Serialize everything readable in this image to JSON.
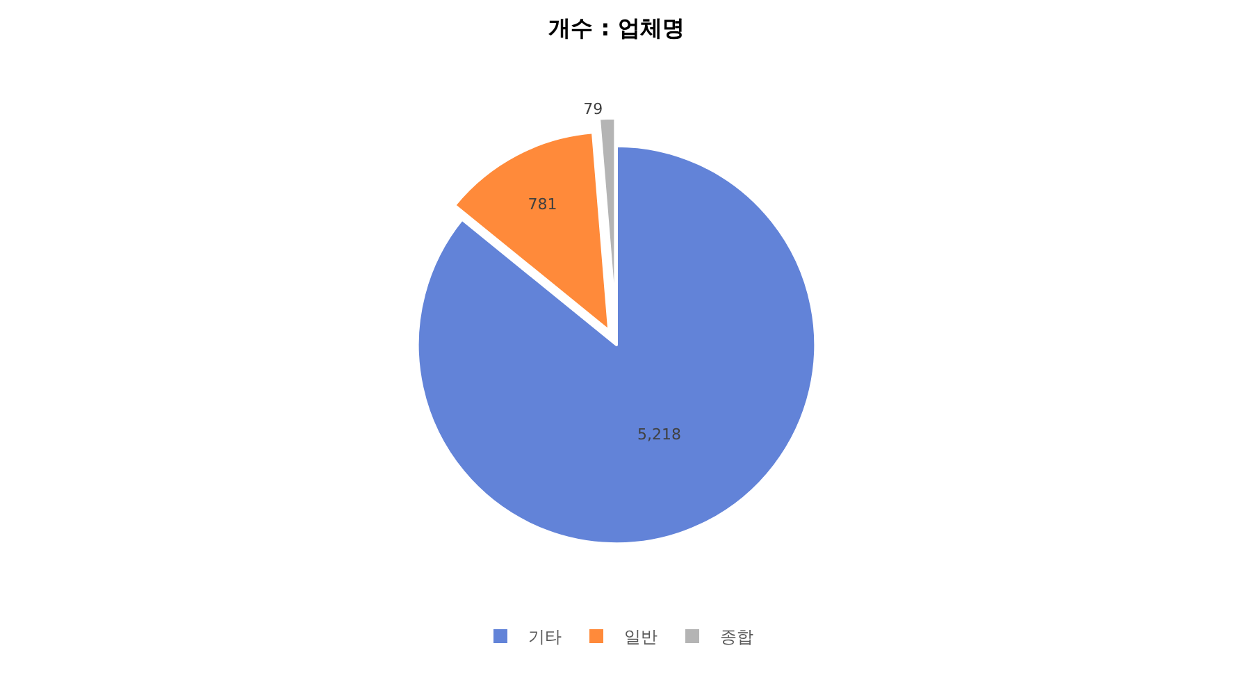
{
  "chart_data": {
    "type": "pie",
    "title": "개수 : 업체명",
    "categories": [
      "기타",
      "일반",
      "종합"
    ],
    "values": [
      5218,
      781,
      79
    ],
    "value_labels": [
      "5,218",
      "781",
      "79"
    ],
    "colors": [
      "#6283d8",
      "#ff8a3a",
      "#b4b4b4"
    ],
    "legend": "bottom"
  }
}
